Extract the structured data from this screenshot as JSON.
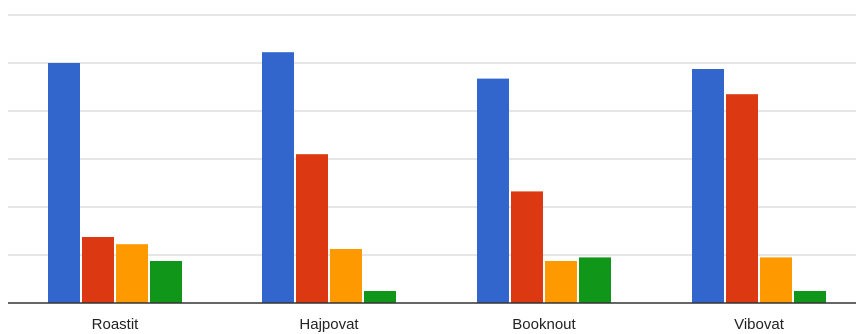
{
  "chart_data": {
    "type": "bar",
    "title": "",
    "xlabel": "",
    "ylabel": "",
    "categories": [
      "Roastit",
      "Hajpovat",
      "Booknout",
      "Vibovat"
    ],
    "series": [
      {
        "color": "#3366cc",
        "values": [
          100,
          104.5,
          93.5,
          97.5
        ]
      },
      {
        "color": "#dc3912",
        "values": [
          27.5,
          62,
          46.5,
          87
        ]
      },
      {
        "color": "#ff9900",
        "values": [
          24.5,
          22.5,
          17.5,
          19
        ]
      },
      {
        "color": "#109618",
        "values": [
          17.5,
          5,
          19,
          5
        ]
      }
    ],
    "ylim": [
      0,
      120
    ],
    "ytick_step": 20,
    "grid": true,
    "legend": "none"
  }
}
